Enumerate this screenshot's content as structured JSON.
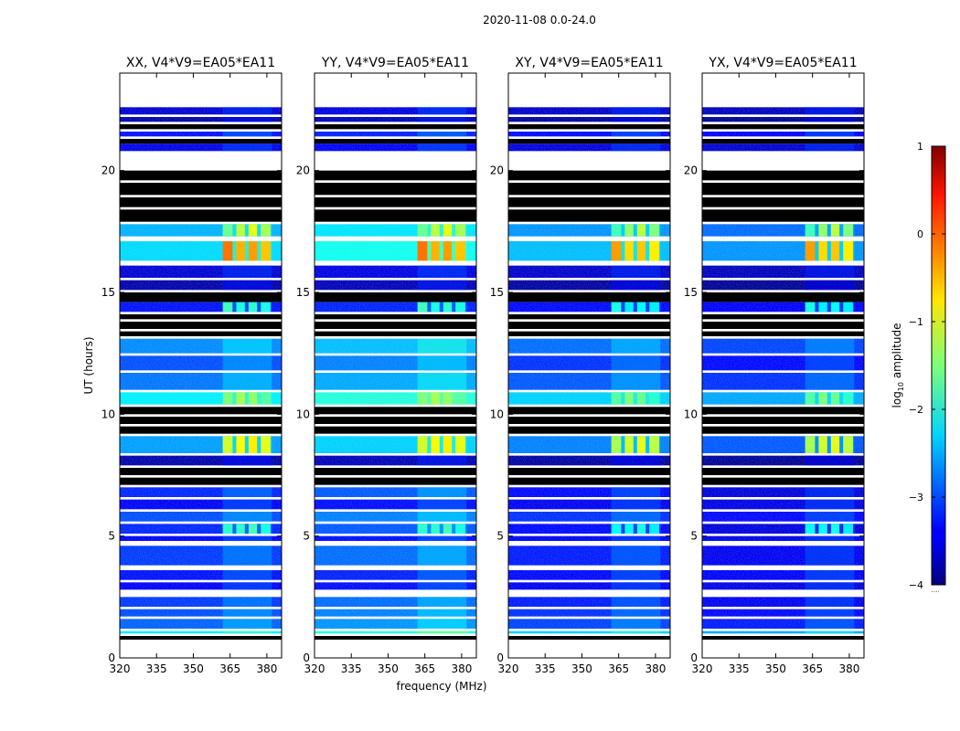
{
  "suptitle": "2020-11-08 0.0-24.0",
  "ylabel": "UT (hours)",
  "xlabel": "frequency (MHz)",
  "colorbar": {
    "label": "log",
    "label_sub": "10",
    "label_rest": " amplitude",
    "range": [
      -4,
      1
    ],
    "ticks": [
      1,
      0,
      -1,
      -2,
      -3,
      -4
    ],
    "tick_labels": [
      "1",
      "0",
      "−1",
      "−2",
      "−3",
      "−4"
    ],
    "footer": "....."
  },
  "chart_data": [
    {
      "type": "heatmap",
      "title": "XX, V4*V9=EA05*EA11",
      "xlabel": "",
      "ylabel": "UT (hours)",
      "xlim": [
        320,
        386
      ],
      "ylim": [
        0,
        24
      ],
      "xticks": [
        320,
        335,
        350,
        365,
        380
      ],
      "yticks": [
        0,
        5,
        10,
        15,
        20
      ],
      "xtick_labels": [
        "320",
        "335",
        "350",
        "365",
        "380"
      ],
      "ytick_labels": [
        "0",
        "5",
        "10",
        "15",
        "20"
      ]
    },
    {
      "type": "heatmap",
      "title": "YY, V4*V9=EA05*EA11",
      "xlabel": "frequency (MHz)",
      "ylabel": "",
      "xlim": [
        320,
        386
      ],
      "ylim": [
        0,
        24
      ],
      "xticks": [
        320,
        335,
        350,
        365,
        380
      ],
      "yticks": [
        0,
        5,
        10,
        15,
        20
      ],
      "xtick_labels": [
        "320",
        "335",
        "350",
        "365",
        "380"
      ],
      "ytick_labels": [
        "0",
        "5",
        "10",
        "15",
        "20"
      ]
    },
    {
      "type": "heatmap",
      "title": "XY, V4*V9=EA05*EA11",
      "xlabel": "",
      "ylabel": "",
      "xlim": [
        320,
        386
      ],
      "ylim": [
        0,
        24
      ],
      "xticks": [
        320,
        335,
        350,
        365,
        380
      ],
      "yticks": [
        0,
        5,
        10,
        15,
        20
      ],
      "xtick_labels": [
        "320",
        "335",
        "350",
        "365",
        "380"
      ],
      "ytick_labels": [
        "0",
        "5",
        "10",
        "15",
        "20"
      ]
    },
    {
      "type": "heatmap",
      "title": "YX, V4*V9=EA05*EA11",
      "xlabel": "",
      "ylabel": "",
      "xlim": [
        320,
        386
      ],
      "ylim": [
        0,
        24
      ],
      "xticks": [
        320,
        335,
        350,
        365,
        380
      ],
      "yticks": [
        0,
        5,
        10,
        15,
        20
      ],
      "xtick_labels": [
        "320",
        "335",
        "350",
        "365",
        "380"
      ],
      "ytick_labels": [
        "0",
        "5",
        "10",
        "15",
        "20"
      ]
    }
  ],
  "time_segments": [
    {
      "t": [
        22.6,
        22.3
      ],
      "k": "n",
      "lvl": -3.6
    },
    {
      "t": [
        22.2,
        22.0
      ],
      "k": "n",
      "lvl": -3.8
    },
    {
      "t": [
        21.9,
        21.7
      ],
      "k": "b"
    },
    {
      "t": [
        21.6,
        21.4
      ],
      "k": "n",
      "lvl": -3.3
    },
    {
      "t": [
        21.3,
        21.1
      ],
      "k": "b"
    },
    {
      "t": [
        21.1,
        20.8
      ],
      "k": "n",
      "lvl": -3.5
    },
    {
      "t": [
        20.0,
        19.6
      ],
      "k": "b"
    },
    {
      "t": [
        19.5,
        19.0
      ],
      "k": "b"
    },
    {
      "t": [
        18.9,
        18.5
      ],
      "k": "b"
    },
    {
      "t": [
        18.4,
        17.9
      ],
      "k": "b"
    },
    {
      "t": [
        17.8,
        17.3
      ],
      "k": "n",
      "lvl": -2.5,
      "rfi": [
        -1.6,
        -1.2,
        -1.0,
        -1.3
      ]
    },
    {
      "t": [
        17.1,
        16.3
      ],
      "k": "n",
      "lvl": -2.3,
      "rfi": [
        -0.2,
        -0.5,
        -0.4,
        -0.6
      ]
    },
    {
      "t": [
        16.1,
        15.6
      ],
      "k": "n",
      "lvl": -3.6
    },
    {
      "t": [
        15.5,
        15.1
      ],
      "k": "n",
      "lvl": -3.8
    },
    {
      "t": [
        15.0,
        14.6
      ],
      "k": "b"
    },
    {
      "t": [
        14.6,
        14.2
      ],
      "k": "n",
      "lvl": -3.3,
      "rfi": [
        -1.8,
        -2.0,
        -1.9,
        -2.0
      ]
    },
    {
      "t": [
        14.1,
        13.9
      ],
      "k": "b"
    },
    {
      "t": [
        13.8,
        13.5
      ],
      "k": "b"
    },
    {
      "t": [
        13.4,
        13.2
      ],
      "k": "b"
    },
    {
      "t": [
        13.1,
        12.5
      ],
      "k": "n",
      "lvl": -2.7
    },
    {
      "t": [
        12.4,
        11.8
      ],
      "k": "n",
      "lvl": -3.0
    },
    {
      "t": [
        11.7,
        11.0
      ],
      "k": "n",
      "lvl": -2.8
    },
    {
      "t": [
        10.9,
        10.4
      ],
      "k": "n",
      "lvl": -2.2,
      "rfi": [
        -1.5,
        -1.3,
        -1.4,
        -1.7
      ]
    },
    {
      "t": [
        10.3,
        10.0
      ],
      "k": "b"
    },
    {
      "t": [
        9.9,
        9.6
      ],
      "k": "b"
    },
    {
      "t": [
        9.5,
        9.2
      ],
      "k": "b"
    },
    {
      "t": [
        9.1,
        8.4
      ],
      "k": "n",
      "lvl": -2.6,
      "rfi": [
        -1.1,
        -0.9,
        -0.8,
        -1.0
      ]
    },
    {
      "t": [
        8.3,
        7.9
      ],
      "k": "n",
      "lvl": -3.8
    },
    {
      "t": [
        7.8,
        7.5
      ],
      "k": "b"
    },
    {
      "t": [
        7.4,
        7.1
      ],
      "k": "b"
    },
    {
      "t": [
        7.0,
        6.6
      ],
      "k": "n",
      "lvl": -3.2
    },
    {
      "t": [
        6.5,
        6.1
      ],
      "k": "n",
      "lvl": -3.4
    },
    {
      "t": [
        6.0,
        5.6
      ],
      "k": "n",
      "lvl": -3.0
    },
    {
      "t": [
        5.5,
        5.1
      ],
      "k": "n",
      "lvl": -3.2,
      "rfi": [
        -1.9,
        -1.9,
        -1.8,
        -2.0
      ]
    },
    {
      "t": [
        5.0,
        4.8
      ],
      "k": "n",
      "lvl": -3.4
    },
    {
      "t": [
        4.6,
        3.8
      ],
      "k": "n",
      "lvl": -3.1
    },
    {
      "t": [
        3.6,
        3.2
      ],
      "k": "n",
      "lvl": -3.3
    },
    {
      "t": [
        3.1,
        2.8
      ],
      "k": "n",
      "lvl": -3.4
    },
    {
      "t": [
        2.5,
        2.1
      ],
      "k": "n",
      "lvl": -3.1
    },
    {
      "t": [
        2.0,
        1.7
      ],
      "k": "n",
      "lvl": -3.0
    },
    {
      "t": [
        1.6,
        1.2
      ],
      "k": "n",
      "lvl": -2.9
    },
    {
      "t": [
        1.1,
        1.0
      ],
      "k": "n",
      "lvl": -2.2
    },
    {
      "t": [
        0.9,
        0.75
      ],
      "k": "b"
    }
  ]
}
